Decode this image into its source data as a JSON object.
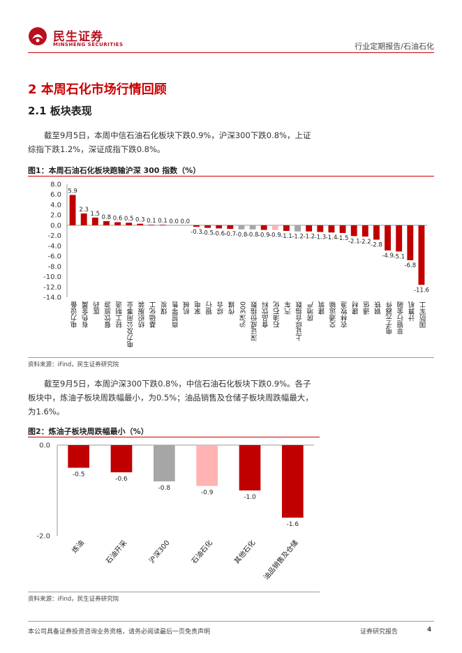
{
  "header": {
    "logo_cn": "民生证券",
    "logo_en": "MINSHENG SECURITIES",
    "report_type": "行业定期报告/石油石化"
  },
  "section": {
    "h1": "2 本周石化市场行情回顾",
    "h2": "2.1 板块表现"
  },
  "paragraphs": {
    "p1_line1": "截至9月5日，本周中信石油石化板块下跌0.9%，沪深300下跌0.8%，上证",
    "p1_line2": "综指下跌1.2%，深证成指下跌0.8%。",
    "p2_line1": "截至9月5日，本周沪深300下跌0.8%，中信石油石化板块下跌0.9%。各子",
    "p2_line2": "板块中，炼油子板块周跌幅最小，为0.5%；油品销售及仓储子板块周跌幅最大，",
    "p2_line3": "为1.6%。"
  },
  "figures": {
    "fig1_title": "图1：本周石油石化板块跑输沪深 300 指数（%）",
    "fig1_source": "资料来源：iFind，民生证券研究院",
    "fig2_title": "图2：炼油子板块周跌幅最小（%）",
    "fig2_source": "资料来源：iFind，民生证券研究院"
  },
  "colors": {
    "accent": "#c00000",
    "bar_red": "#c00000",
    "bar_gray": "#a6a6a6",
    "bar_pink": "#ffb3b3"
  },
  "chart_data": [
    {
      "type": "bar",
      "title": "",
      "categories": [
        "电力设备",
        "有色金属",
        "医药",
        "餐饮旅游",
        "轻工制造",
        "电力及公用事业",
        "纺织服装",
        "基础化工",
        "煤炭",
        "商贸零售",
        "机械",
        "家电",
        "银行",
        "综合",
        "传媒",
        "沪深300",
        "深证成份指数",
        "食品饮料",
        "石油石化",
        "汽车",
        "上证综合指数",
        "房地产",
        "建筑",
        "交通运输",
        "农林牧渔",
        "建材",
        "通信",
        "钢铁",
        "电子元器件",
        "非银行金融",
        "计算机",
        "国防军工"
      ],
      "values": [
        5.9,
        2.3,
        1.5,
        0.8,
        0.6,
        0.5,
        0.3,
        0.1,
        0.1,
        0.0,
        0.0,
        -0.3,
        -0.5,
        -0.6,
        -0.7,
        -0.8,
        -0.8,
        -0.9,
        -0.9,
        -1.1,
        -1.2,
        -1.2,
        -1.3,
        -1.4,
        -1.5,
        -2.1,
        -2.2,
        -2.8,
        -4.9,
        -5.1,
        -6.8,
        -11.6
      ],
      "value_labels": [
        "5.9",
        "2.3",
        "1.5",
        "0.8",
        "0.6",
        "0.5",
        "0.3",
        "0.1",
        "0.1",
        "0.0",
        "0.0",
        "-0.3",
        "-0.5",
        "-0.6",
        "-0.7",
        "-0.8",
        "-0.8",
        "-0.9",
        "-0.9",
        "-1.1",
        "-1.2",
        "-1.2",
        "-1.3",
        "-1.4",
        "-1.5",
        "-2.1",
        "-2.2",
        "-2.8",
        "-4.9",
        "-5.1",
        "-6.8",
        "-11.6"
      ],
      "highlight": {
        "沪深300": "gray",
        "深证成份指数": "gray",
        "上证综合指数": "gray",
        "石油石化": "pink"
      },
      "ylim": [
        -14,
        8
      ],
      "yticks": [
        "8.0",
        "6.0",
        "4.0",
        "2.0",
        "0.0",
        "-2.0",
        "-4.0",
        "-6.0",
        "-8.0",
        "-10.0",
        "-12.0",
        "-14.0"
      ],
      "ytick_values": [
        8,
        6,
        4,
        2,
        0,
        -2,
        -4,
        -6,
        -8,
        -10,
        -12,
        -14
      ],
      "grid": false,
      "legend": "none"
    },
    {
      "type": "bar",
      "title": "",
      "categories": [
        "炼油",
        "石油开采",
        "沪深300",
        "石油石化",
        "其他石化",
        "油品销售及仓储"
      ],
      "values": [
        -0.5,
        -0.6,
        -0.8,
        -0.9,
        -1.0,
        -1.6
      ],
      "value_labels": [
        "-0.5",
        "-0.6",
        "-0.8",
        "-0.9",
        "-1.0",
        "-1.6"
      ],
      "highlight": {
        "沪深300": "gray",
        "石油石化": "pink"
      },
      "ylim": [
        -2,
        0
      ],
      "yticks": [
        "0.0",
        "-2.0"
      ],
      "ytick_values": [
        0,
        -2
      ],
      "grid": false,
      "legend": "none"
    }
  ]
}
